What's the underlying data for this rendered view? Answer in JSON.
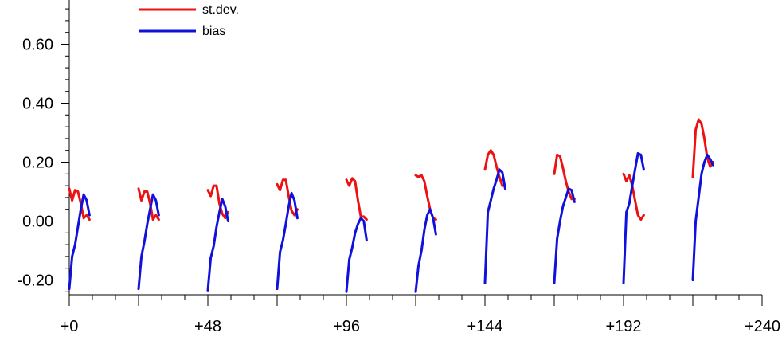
{
  "chart_data": {
    "type": "line",
    "title": "",
    "xlabel": "",
    "ylabel": "",
    "xlim": [
      0,
      240
    ],
    "ylim": [
      -0.25,
      0.75
    ],
    "x_ticks": [
      0,
      48,
      96,
      144,
      192,
      240
    ],
    "x_tick_labels": [
      "+0",
      "+48",
      "+96",
      "+144",
      "+192",
      "+240"
    ],
    "y_ticks": [
      -0.2,
      0.0,
      0.2,
      0.4,
      0.6
    ],
    "y_tick_labels": [
      "-0.20",
      "0.00",
      "0.20",
      "0.40",
      "0.60"
    ],
    "zero_line": true,
    "grid": false,
    "legend_position": "top-left",
    "series": [
      {
        "name": "st.dev.",
        "color": "#ee1111",
        "segments": [
          {
            "x": [
              0,
              1,
              2,
              3,
              4,
              5,
              6,
              7
            ],
            "y": [
              0.11,
              0.07,
              0.105,
              0.1,
              0.06,
              0.01,
              0.02,
              0.005
            ]
          },
          {
            "x": [
              24,
              25,
              26,
              27,
              28,
              29,
              30,
              31
            ],
            "y": [
              0.11,
              0.07,
              0.1,
              0.1,
              0.06,
              0.005,
              0.02,
              0.005
            ]
          },
          {
            "x": [
              48,
              49,
              50,
              51,
              52,
              53,
              54,
              55
            ],
            "y": [
              0.105,
              0.085,
              0.12,
              0.12,
              0.06,
              0.025,
              0.01,
              0.03
            ]
          },
          {
            "x": [
              72,
              73,
              74,
              75,
              76,
              77,
              78,
              79
            ],
            "y": [
              0.125,
              0.105,
              0.14,
              0.14,
              0.085,
              0.035,
              0.02,
              0.04
            ]
          },
          {
            "x": [
              96,
              97,
              98,
              99,
              100,
              101,
              102,
              103
            ],
            "y": [
              0.14,
              0.12,
              0.145,
              0.135,
              0.07,
              0.015,
              0.015,
              0.005
            ]
          },
          {
            "x": [
              120,
              121,
              122,
              123,
              124,
              125,
              126,
              127
            ],
            "y": [
              0.155,
              0.15,
              0.155,
              0.135,
              0.085,
              0.04,
              0.01,
              0.005
            ]
          },
          {
            "x": [
              144,
              145,
              146,
              147,
              148,
              149,
              150,
              151
            ],
            "y": [
              0.175,
              0.225,
              0.24,
              0.225,
              0.185,
              0.15,
              0.12,
              0.12
            ]
          },
          {
            "x": [
              168,
              169,
              170,
              171,
              172,
              173,
              174,
              175
            ],
            "y": [
              0.16,
              0.225,
              0.22,
              0.18,
              0.135,
              0.1,
              0.075,
              0.075
            ]
          },
          {
            "x": [
              192,
              193,
              194,
              195,
              196,
              197,
              198,
              199
            ],
            "y": [
              0.16,
              0.135,
              0.155,
              0.12,
              0.07,
              0.02,
              0.005,
              0.02
            ]
          },
          {
            "x": [
              216,
              217,
              218,
              219,
              220,
              221,
              222,
              223
            ],
            "y": [
              0.15,
              0.31,
              0.345,
              0.33,
              0.28,
              0.215,
              0.185,
              0.2
            ]
          }
        ]
      },
      {
        "name": "bias",
        "color": "#1111dd",
        "segments": [
          {
            "x": [
              0,
              1,
              2,
              3,
              4,
              5,
              6,
              7
            ],
            "y": [
              -0.23,
              -0.12,
              -0.08,
              -0.02,
              0.04,
              0.09,
              0.07,
              0.02
            ]
          },
          {
            "x": [
              24,
              25,
              26,
              27,
              28,
              29,
              30,
              31
            ],
            "y": [
              -0.23,
              -0.12,
              -0.07,
              -0.01,
              0.04,
              0.09,
              0.07,
              0.02
            ]
          },
          {
            "x": [
              48,
              49,
              50,
              51,
              52,
              53,
              54,
              55
            ],
            "y": [
              -0.235,
              -0.125,
              -0.085,
              -0.02,
              0.03,
              0.075,
              0.05,
              0.0
            ]
          },
          {
            "x": [
              72,
              73,
              74,
              75,
              76,
              77,
              78,
              79
            ],
            "y": [
              -0.23,
              -0.105,
              -0.065,
              -0.01,
              0.05,
              0.095,
              0.07,
              0.01
            ]
          },
          {
            "x": [
              96,
              97,
              98,
              99,
              100,
              101,
              102,
              103
            ],
            "y": [
              -0.24,
              -0.13,
              -0.09,
              -0.04,
              -0.01,
              0.01,
              0.0,
              -0.065
            ]
          },
          {
            "x": [
              120,
              121,
              122,
              123,
              124,
              125,
              126,
              127
            ],
            "y": [
              -0.24,
              -0.15,
              -0.1,
              -0.03,
              0.02,
              0.04,
              0.01,
              -0.045
            ]
          },
          {
            "x": [
              144,
              145,
              146,
              147,
              148,
              149,
              150,
              151
            ],
            "y": [
              -0.21,
              0.03,
              0.07,
              0.11,
              0.14,
              0.175,
              0.165,
              0.11
            ]
          },
          {
            "x": [
              168,
              169,
              170,
              171,
              172,
              173,
              174,
              175
            ],
            "y": [
              -0.21,
              -0.06,
              0.0,
              0.05,
              0.08,
              0.11,
              0.105,
              0.065
            ]
          },
          {
            "x": [
              192,
              193,
              194,
              195,
              196,
              197,
              198,
              199
            ],
            "y": [
              -0.21,
              0.03,
              0.06,
              0.12,
              0.175,
              0.23,
              0.225,
              0.175
            ]
          },
          {
            "x": [
              216,
              217,
              218,
              219,
              220,
              221,
              222,
              223
            ],
            "y": [
              -0.2,
              0.0,
              0.08,
              0.16,
              0.2,
              0.225,
              0.21,
              0.19
            ]
          }
        ]
      }
    ]
  }
}
